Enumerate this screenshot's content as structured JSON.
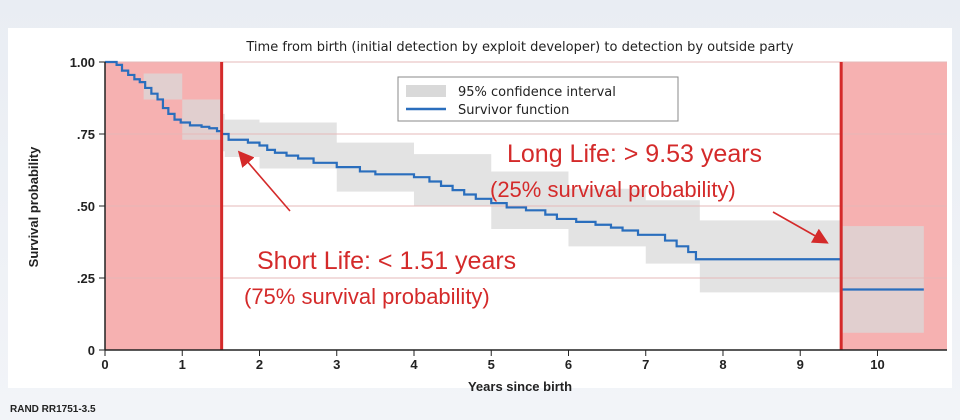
{
  "chart_data": {
    "type": "line",
    "title": "Time from birth (initial detection by exploit developer) to detection by outside party",
    "xlabel": "Years since birth",
    "ylabel": "Survival probability",
    "xlim": [
      0,
      10.9
    ],
    "ylim": [
      0,
      1.0
    ],
    "x_ticks": [
      0,
      1,
      2,
      3,
      4,
      5,
      6,
      7,
      8,
      9,
      10
    ],
    "x_tick_labels": [
      "0",
      "1",
      "2",
      "3",
      "4",
      "5",
      "6",
      "7",
      "8",
      "9",
      "10"
    ],
    "y_ticks": [
      0,
      0.25,
      0.5,
      0.75,
      1.0
    ],
    "y_tick_labels": [
      "0",
      ".25",
      ".50",
      ".75",
      "1.00"
    ],
    "legend": {
      "placement": "top-center",
      "entries": [
        {
          "label": "95% confidence interval",
          "color": "#d9d9d9"
        },
        {
          "label": "Survivor function",
          "color": "#2a6ebd"
        }
      ]
    },
    "series": [
      {
        "name": "Survivor function",
        "step": true,
        "points": [
          [
            0,
            1.0
          ],
          [
            0.15,
            0.99
          ],
          [
            0.22,
            0.97
          ],
          [
            0.3,
            0.955
          ],
          [
            0.38,
            0.94
          ],
          [
            0.45,
            0.93
          ],
          [
            0.52,
            0.91
          ],
          [
            0.6,
            0.89
          ],
          [
            0.68,
            0.87
          ],
          [
            0.75,
            0.84
          ],
          [
            0.82,
            0.82
          ],
          [
            0.9,
            0.8
          ],
          [
            0.98,
            0.79
          ],
          [
            1.1,
            0.78
          ],
          [
            1.25,
            0.775
          ],
          [
            1.35,
            0.77
          ],
          [
            1.45,
            0.76
          ],
          [
            1.51,
            0.75
          ],
          [
            1.6,
            0.73
          ],
          [
            1.85,
            0.72
          ],
          [
            2.0,
            0.71
          ],
          [
            2.1,
            0.695
          ],
          [
            2.2,
            0.685
          ],
          [
            2.35,
            0.675
          ],
          [
            2.5,
            0.665
          ],
          [
            2.7,
            0.65
          ],
          [
            3.0,
            0.635
          ],
          [
            3.3,
            0.62
          ],
          [
            3.5,
            0.61
          ],
          [
            4.0,
            0.6
          ],
          [
            4.2,
            0.585
          ],
          [
            4.35,
            0.57
          ],
          [
            4.5,
            0.555
          ],
          [
            4.65,
            0.54
          ],
          [
            4.8,
            0.525
          ],
          [
            5.0,
            0.51
          ],
          [
            5.2,
            0.495
          ],
          [
            5.45,
            0.485
          ],
          [
            5.7,
            0.47
          ],
          [
            5.85,
            0.455
          ],
          [
            6.1,
            0.445
          ],
          [
            6.35,
            0.435
          ],
          [
            6.55,
            0.425
          ],
          [
            6.7,
            0.415
          ],
          [
            6.9,
            0.4
          ],
          [
            7.25,
            0.38
          ],
          [
            7.4,
            0.36
          ],
          [
            7.55,
            0.34
          ],
          [
            7.65,
            0.315
          ],
          [
            8.0,
            0.315
          ],
          [
            9.53,
            0.315
          ],
          [
            9.53,
            0.21
          ],
          [
            10.6,
            0.21
          ]
        ]
      }
    ],
    "confidence_band": {
      "x": [
        0,
        0.5,
        1.0,
        1.5,
        1.55,
        2,
        3,
        4,
        5,
        6,
        7,
        7.7,
        8,
        9.53,
        9.55,
        10.6
      ],
      "upper": [
        1.0,
        0.96,
        0.87,
        0.82,
        0.8,
        0.79,
        0.72,
        0.68,
        0.62,
        0.56,
        0.52,
        0.45,
        0.45,
        0.45,
        0.43,
        0.43
      ],
      "lower": [
        1.0,
        0.87,
        0.73,
        0.69,
        0.67,
        0.63,
        0.55,
        0.5,
        0.42,
        0.36,
        0.3,
        0.2,
        0.2,
        0.2,
        0.06,
        0.06
      ]
    },
    "highlight_regions": [
      {
        "x_start": 0,
        "x_end": 1.51,
        "color": "#f4a3a3"
      },
      {
        "x_start": 9.53,
        "x_end": 10.9,
        "color": "#f4a3a3"
      }
    ],
    "annotations": [
      {
        "text": "Long Life: > 9.53 years",
        "style": "big"
      },
      {
        "text": "(25% survival probability)",
        "style": "small"
      },
      {
        "text": "Short Life: < 1.51 years",
        "style": "big"
      },
      {
        "text": "(75% survival probability)",
        "style": "small"
      }
    ]
  },
  "source_note": "RAND RR1751-3.5",
  "colors": {
    "accent_red": "#d42a2a",
    "curve_blue": "#2a6ebd",
    "band_gray": "#d9d9d9",
    "region_pink": "#f4a3a3"
  }
}
